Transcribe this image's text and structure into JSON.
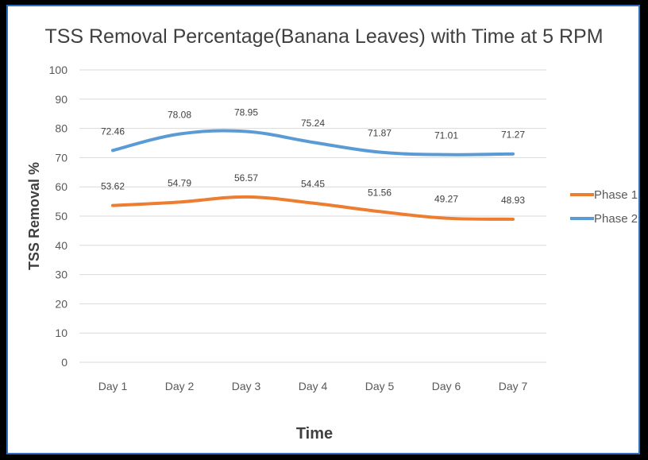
{
  "chart_data": {
    "type": "line",
    "title": "TSS Removal Percentage(Banana Leaves) with Time at 5 RPM",
    "xlabel": "Time",
    "ylabel": "TSS Removal %",
    "categories": [
      "Day 1",
      "Day 2",
      "Day 3",
      "Day 4",
      "Day 5",
      "Day 6",
      "Day 7"
    ],
    "ylim": [
      0,
      100
    ],
    "yticks": [
      0,
      10,
      20,
      30,
      40,
      50,
      60,
      70,
      80,
      90,
      100
    ],
    "grid": true,
    "legend_position": "right",
    "series": [
      {
        "name": "Phase 1",
        "color": "#ed7d31",
        "values": [
          53.62,
          54.79,
          56.57,
          54.45,
          51.56,
          49.27,
          48.93
        ]
      },
      {
        "name": "Phase 2",
        "color": "#5b9bd5",
        "values": [
          72.46,
          78.08,
          78.95,
          75.24,
          71.87,
          71.01,
          71.27
        ]
      }
    ]
  }
}
